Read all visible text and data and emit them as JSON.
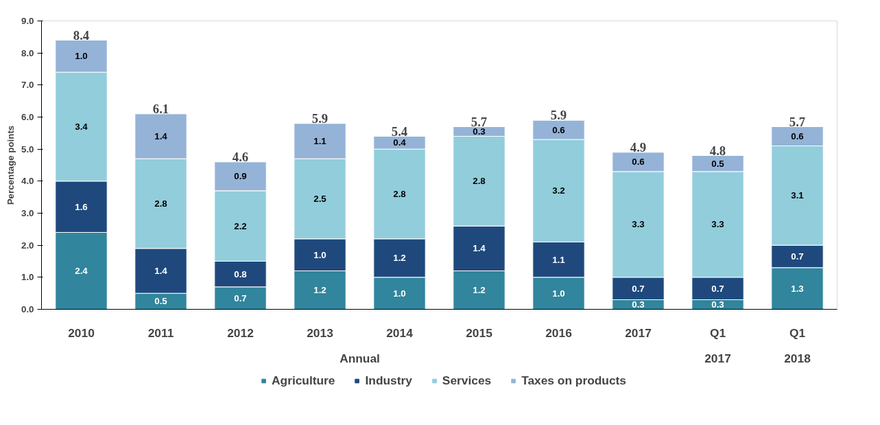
{
  "chart_data": {
    "type": "bar",
    "stacked": true,
    "ylabel": "Percentage points",
    "categories": [
      "2010",
      "2011",
      "2012",
      "2013",
      "2014",
      "2015",
      "2016",
      "2017",
      "Q1",
      "Q1"
    ],
    "annotations": [
      "Annual",
      "2017",
      "2018"
    ],
    "series": [
      {
        "name": "Agriculture",
        "color": "#31859c",
        "values": [
          2.4,
          0.5,
          0.7,
          1.2,
          1.0,
          1.2,
          1.0,
          0.3,
          0.3,
          1.3
        ],
        "value_labels": [
          "2.4",
          "0.5",
          "0.7",
          "1.2",
          "1.0",
          "1.2",
          "1.0",
          "0.3",
          "0.3",
          "1.3"
        ]
      },
      {
        "name": "Industry",
        "color": "#1f497d",
        "values": [
          1.6,
          1.4,
          0.8,
          1.0,
          1.2,
          1.4,
          1.1,
          0.7,
          0.7,
          0.7
        ],
        "value_labels": [
          "1.6",
          "1.4",
          "0.8",
          "1.0",
          "1.2",
          "1.4",
          "1.1",
          "0.7",
          "0.7",
          "0.7"
        ]
      },
      {
        "name": "Services",
        "color": "#92cddc",
        "values": [
          3.4,
          2.8,
          2.2,
          2.5,
          2.8,
          2.8,
          3.2,
          3.3,
          3.3,
          3.1
        ],
        "value_labels": [
          "3.4",
          "2.8",
          "2.2",
          "2.5",
          "2.8",
          "2.8",
          "3.2",
          "3.3",
          "3.3",
          "3.1"
        ]
      },
      {
        "name": "Taxes on products",
        "color": "#95b3d7",
        "values": [
          1.0,
          1.4,
          0.9,
          1.1,
          0.4,
          0.3,
          0.6,
          0.6,
          0.5,
          0.6
        ],
        "value_labels": [
          "1.0",
          "1.4",
          "0.9",
          "1.1",
          "0.4",
          "0.3",
          "0.6",
          "0.6",
          "0.5",
          "0.6"
        ]
      }
    ],
    "totals": [
      "8.4",
      "6.1",
      "4.6",
      "5.9",
      "5.4",
      "5.7",
      "5.9",
      "4.9",
      "4.8",
      "5.7"
    ],
    "data_labels": true,
    "ylim": [
      0,
      9
    ],
    "yticks": [
      {
        "value": 0,
        "label": "0.0"
      },
      {
        "value": 1,
        "label": "1.0"
      },
      {
        "value": 2,
        "label": "2.0"
      },
      {
        "value": 3,
        "label": "3.0"
      },
      {
        "value": 4,
        "label": "4.0"
      },
      {
        "value": 5,
        "label": "5.0"
      },
      {
        "value": 6,
        "label": "6.0"
      },
      {
        "value": 7,
        "label": "7.0"
      },
      {
        "value": 8,
        "label": "8.0"
      },
      {
        "value": 9,
        "label": "9.0"
      }
    ],
    "grid": false,
    "legend": "bottom"
  }
}
